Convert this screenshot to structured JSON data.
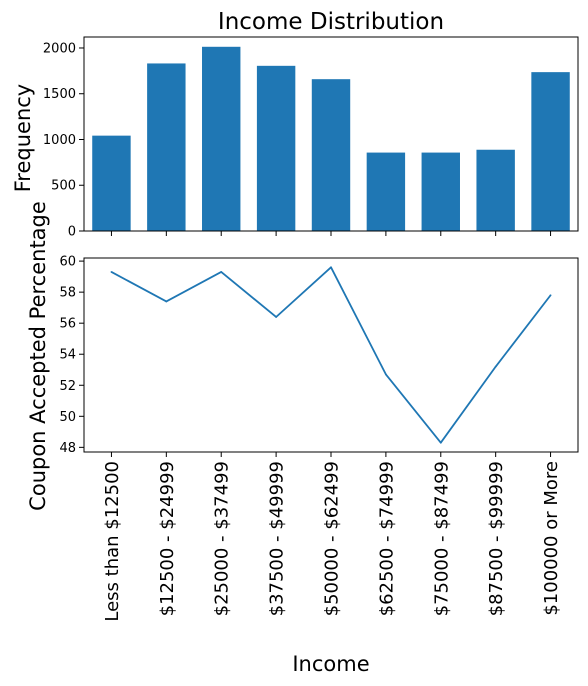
{
  "chart_data": [
    {
      "type": "bar",
      "title": "Income Distribution",
      "xlabel": "",
      "ylabel": "Frequency",
      "categories": [
        "Less than $12500",
        "$12500 - $24999",
        "$25000 - $37499",
        "$37500 - $49999",
        "$50000 - $62499",
        "$62500 - $74999",
        "$75000 - $87499",
        "$87500 - $99999",
        "$100000 or More"
      ],
      "values": [
        1042,
        1831,
        2013,
        1805,
        1659,
        857,
        857,
        888,
        1736
      ],
      "ylim": [
        0,
        2120
      ],
      "yticks": [
        0,
        500,
        1000,
        1500,
        2000
      ],
      "color": "#1f77b4",
      "grid": false
    },
    {
      "type": "line",
      "title": "",
      "xlabel": "Income",
      "ylabel": "Coupon Accepted Percentage",
      "categories": [
        "Less than $12500",
        "$12500 - $24999",
        "$25000 - $37499",
        "$37500 - $49999",
        "$50000 - $62499",
        "$62500 - $74999",
        "$75000 - $87499",
        "$87500 - $99999",
        "$100000 or More"
      ],
      "values": [
        59.3,
        57.4,
        59.3,
        56.4,
        59.6,
        52.7,
        48.3,
        53.2,
        57.8
      ],
      "ylim": [
        47.7,
        60.2
      ],
      "yticks": [
        48,
        50,
        52,
        54,
        56,
        58,
        60
      ],
      "color": "#1f77b4",
      "grid": false
    }
  ]
}
